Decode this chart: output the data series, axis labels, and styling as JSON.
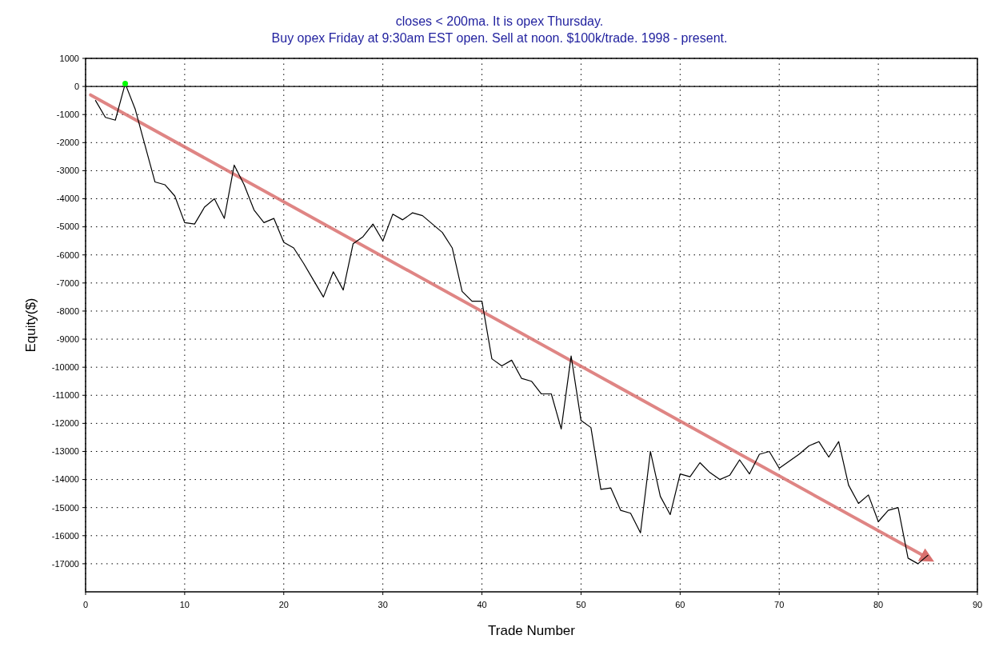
{
  "chart_data": {
    "type": "line",
    "title": "closes < 200ma. It is opex Thursday.",
    "subtitle": "Buy opex Friday at 9:30am EST open. Sell at noon. $100k/trade. 1998 - present.",
    "xlabel": "Trade Number",
    "ylabel": "Equity($)",
    "xlim": [
      0,
      90
    ],
    "xticks": [
      0,
      10,
      20,
      30,
      40,
      50,
      60,
      70,
      80,
      90
    ],
    "ylim": [
      -18000,
      1000
    ],
    "yticks": [
      1000,
      0,
      -1000,
      -2000,
      -3000,
      -4000,
      -5000,
      -6000,
      -7000,
      -8000,
      -9000,
      -10000,
      -11000,
      -12000,
      -13000,
      -14000,
      -15000,
      -16000,
      -17000
    ],
    "grid": true,
    "ref_lines": [
      {
        "axis": "y",
        "value": 0,
        "color": "#000000",
        "line_style": "solid"
      }
    ],
    "series": [
      {
        "color": "#000000",
        "x": [
          1,
          2,
          3,
          4,
          5,
          6,
          7,
          8,
          9,
          10,
          11,
          12,
          13,
          14,
          15,
          16,
          17,
          18,
          19,
          20,
          21,
          22,
          23,
          24,
          25,
          26,
          27,
          28,
          29,
          30,
          31,
          32,
          33,
          34,
          35,
          36,
          37,
          38,
          39,
          40,
          41,
          42,
          43,
          44,
          45,
          46,
          47,
          48,
          49,
          50,
          51,
          52,
          53,
          54,
          55,
          56,
          57,
          58,
          59,
          60,
          61,
          62,
          63,
          64,
          65,
          66,
          67,
          68,
          69,
          70,
          71,
          72,
          73,
          74,
          75,
          76,
          77,
          78,
          79,
          80,
          81,
          82,
          83,
          84,
          85
        ],
        "values": [
          -500,
          -1100,
          -1200,
          100,
          -800,
          -2100,
          -3400,
          -3500,
          -3900,
          -4850,
          -4900,
          -4300,
          -4000,
          -4700,
          -2800,
          -3500,
          -4400,
          -4850,
          -4700,
          -5550,
          -5750,
          -6300,
          -6900,
          -7500,
          -6600,
          -7250,
          -5600,
          -5350,
          -4900,
          -5500,
          -4550,
          -4750,
          -4500,
          -4600,
          -4900,
          -5200,
          -5750,
          -7300,
          -7650,
          -7650,
          -9700,
          -9950,
          -9750,
          -10400,
          -10500,
          -10950,
          -10950,
          -12200,
          -9600,
          -11900,
          -12150,
          -14350,
          -14300,
          -15100,
          -15200,
          -15900,
          -13000,
          -14600,
          -15250,
          -13800,
          -13900,
          -13400,
          -13750,
          -14000,
          -13850,
          -13300,
          -13800,
          -13100,
          -13000,
          -13600,
          -13350,
          -13100,
          -12800,
          -12650,
          -13200,
          -12650,
          -14200,
          -14850,
          -14550,
          -15500,
          -15100,
          -15000,
          -16800,
          -17000,
          -16700
        ]
      },
      {
        "type": "line",
        "color": "#d9706e",
        "x": [
          0.5,
          85
        ],
        "values": [
          -300,
          -16800
        ]
      },
      {
        "type": "scatter",
        "color": "#00ff00",
        "x": [
          4
        ],
        "values": [
          100
        ],
        "marker": "circle"
      }
    ]
  }
}
